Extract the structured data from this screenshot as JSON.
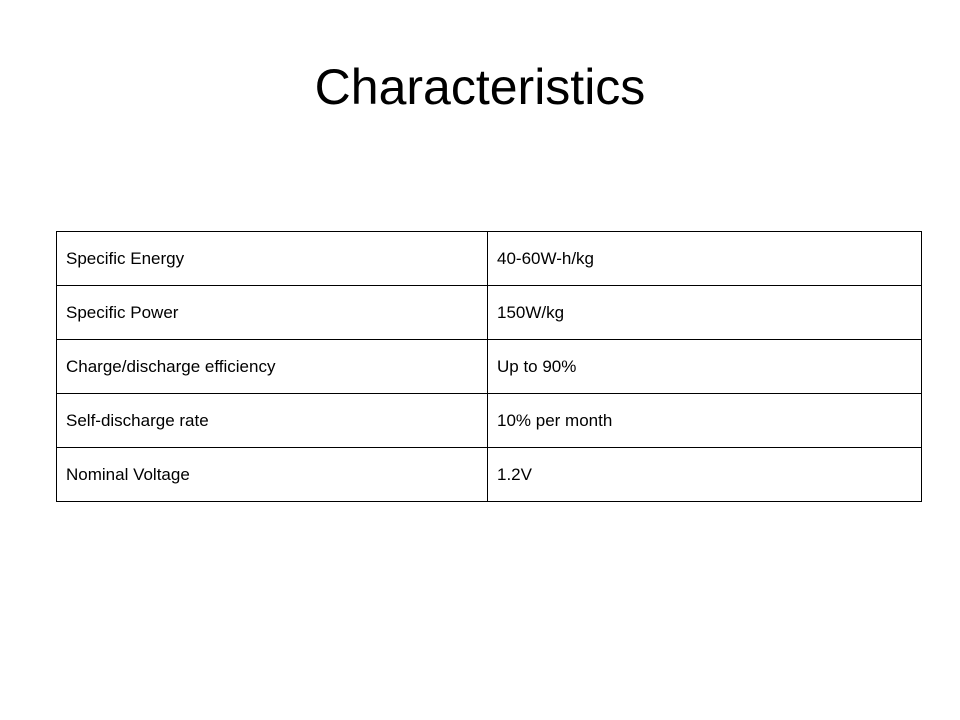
{
  "header": {
    "title": "Characteristics"
  },
  "table": {
    "rows": [
      [
        "Specific Energy",
        "40-60W-h/kg"
      ],
      [
        "Specific Power",
        "150W/kg"
      ],
      [
        "Charge/discharge efficiency",
        "Up to 90%"
      ],
      [
        "Self-discharge rate",
        "10% per month"
      ],
      [
        "Nominal Voltage",
        "1.2V"
      ]
    ]
  }
}
